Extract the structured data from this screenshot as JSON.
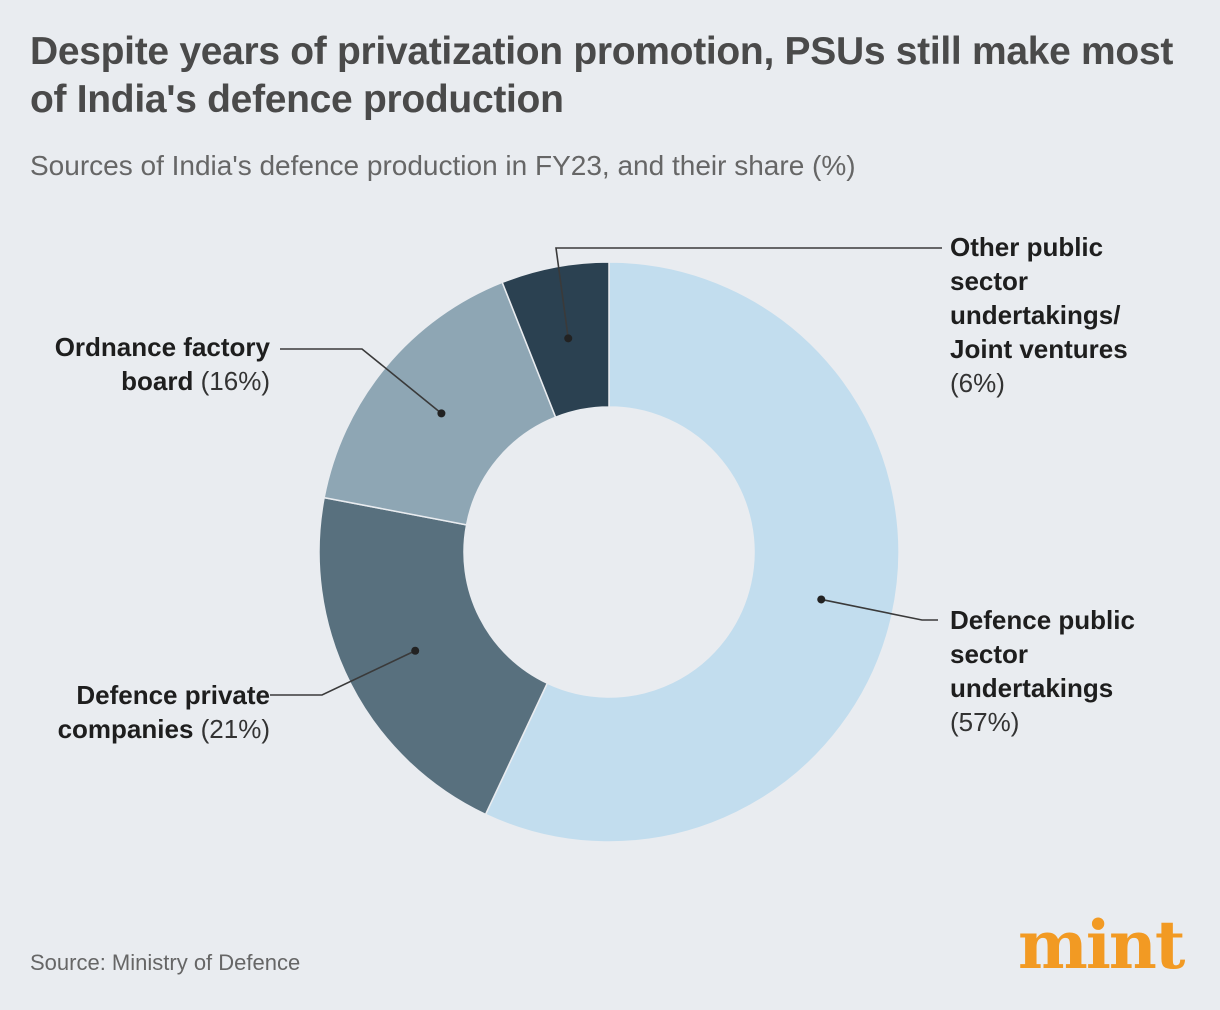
{
  "title": "Despite years of privatization promotion, PSUs still make most of India's defence production",
  "subtitle": "Sources of India's defence production in FY23, and their share (%)",
  "source": "Source: Ministry of Defence",
  "logo": "mint",
  "chart_data": {
    "type": "pie",
    "donut": true,
    "title": "Despite years of privatization promotion, PSUs still make most of India's defence production",
    "subtitle": "Sources of India's defence production in FY23, and their share (%)",
    "slices": [
      {
        "name": "Defence public sector undertakings",
        "value": 57,
        "pct_label": "(57%)",
        "color": "#c2ddee"
      },
      {
        "name": "Defence private companies",
        "value": 21,
        "pct_label": "(21%)",
        "color": "#58707e"
      },
      {
        "name": "Ordnance factory board",
        "value": 16,
        "pct_label": "(16%)",
        "color": "#8ea6b4"
      },
      {
        "name": "Other public sector undertakings/ Joint ventures",
        "value": 6,
        "pct_label": "(6%)",
        "color": "#2b4151"
      }
    ]
  },
  "labels": {
    "dpsu": {
      "line1": "Defence public",
      "line2": "sector",
      "line3": "undertakings",
      "pct": "(57%)"
    },
    "private": {
      "line1": "Defence private",
      "line2": "companies",
      "pct": "(21%)"
    },
    "ofb": {
      "line1": "Ordnance factory",
      "line2": "board",
      "pct": "(16%)"
    },
    "other": {
      "line1": "Other public",
      "line2": "sector",
      "line3": "undertakings/",
      "line4": "Joint ventures",
      "pct": "(6%)"
    }
  }
}
